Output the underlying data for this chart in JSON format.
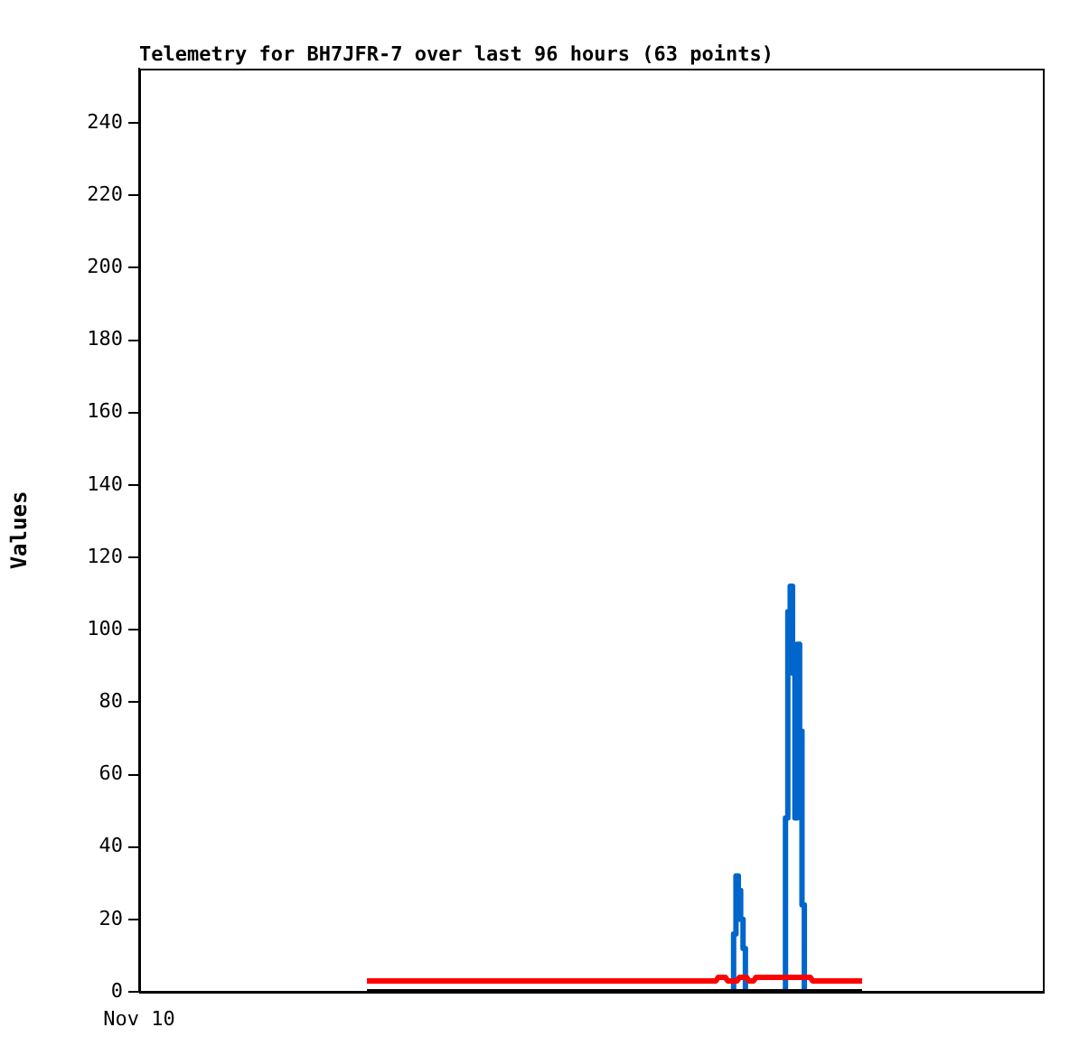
{
  "chart_data": {
    "type": "line",
    "title": "Telemetry for BH7JFR-7 over last 96 hours (63 points)",
    "ylabel": "Values",
    "annotations": [
      "Nov 10"
    ],
    "categories": [
      null,
      null,
      null,
      null,
      null,
      null,
      null,
      null,
      null,
      null,
      null,
      null,
      null,
      null,
      null,
      null,
      null,
      null,
      null,
      null,
      null,
      null,
      null,
      null,
      null,
      null,
      null,
      null,
      null,
      null,
      null,
      null,
      null,
      null,
      null,
      null,
      null,
      null,
      null,
      null,
      null,
      null,
      null,
      null,
      null,
      null,
      null,
      null,
      null,
      null,
      null,
      null,
      null,
      null,
      null,
      null,
      null,
      null,
      null,
      null,
      null,
      null,
      null,
      null,
      null,
      null,
      null,
      null,
      null,
      null,
      null,
      null,
      null,
      null,
      null,
      null,
      null,
      null,
      null,
      null,
      null,
      null,
      null,
      null,
      null,
      null,
      null,
      null,
      null,
      null,
      null,
      null,
      null,
      null,
      null,
      null,
      null,
      null,
      null,
      null,
      null,
      null,
      null,
      null,
      null,
      null,
      null,
      null,
      null,
      null,
      null,
      null,
      null,
      null,
      null,
      null,
      null,
      null,
      null,
      null,
      null,
      null,
      null,
      null,
      null,
      null,
      null,
      null,
      null,
      null,
      null,
      null,
      null,
      null,
      null,
      null,
      null,
      null,
      null,
      null,
      null,
      null,
      null,
      null,
      null,
      null,
      null,
      null,
      null,
      null,
      null,
      null,
      null,
      null,
      null,
      null,
      null,
      null,
      null,
      null,
      null,
      null,
      null,
      null,
      null,
      null,
      null,
      null,
      null,
      null,
      null,
      null,
      null,
      null,
      null,
      null,
      null,
      null,
      null,
      null,
      null,
      null,
      null,
      null,
      null,
      null,
      null,
      null,
      null,
      null,
      null,
      null,
      null,
      null,
      null,
      null,
      null,
      null,
      null,
      null,
      null,
      null,
      null,
      null,
      null,
      null,
      null,
      null,
      null,
      null,
      null
    ],
    "ylim": [
      0,
      255
    ],
    "yticks": [
      0,
      20,
      40,
      60,
      80,
      100,
      120,
      140,
      160,
      180,
      200,
      220,
      240
    ],
    "grid": false,
    "legend": false,
    "marker": "none",
    "line_style": "solid",
    "series": [
      {
        "color": "#000000",
        "values": [
          0,
          0,
          0,
          0,
          0,
          0,
          0,
          0,
          0,
          0,
          0,
          0,
          0,
          0,
          0,
          0,
          0,
          0,
          0,
          0,
          0,
          0,
          0,
          0,
          0,
          0,
          0,
          0,
          0,
          0,
          0,
          0,
          0,
          0,
          0,
          0,
          0,
          0,
          0,
          0,
          0,
          0,
          0,
          0,
          0,
          0,
          0,
          0,
          0,
          0,
          0,
          0,
          0,
          0,
          0,
          0,
          0,
          0,
          0,
          0,
          0,
          0,
          0,
          0,
          0,
          0,
          0,
          0,
          0,
          0,
          0,
          0,
          0,
          0,
          0,
          0,
          0,
          0,
          0,
          0,
          0,
          0,
          0,
          0,
          0,
          0,
          0,
          0,
          0,
          0,
          0,
          0,
          0,
          0,
          0,
          0,
          0,
          0,
          0,
          0,
          0,
          0,
          0,
          0,
          0,
          0,
          0,
          0,
          0,
          0,
          0,
          0,
          0,
          0,
          0,
          0,
          0,
          0,
          0,
          0,
          0,
          0,
          0,
          0,
          0,
          0,
          0,
          0,
          0,
          0,
          0,
          0,
          0,
          0,
          0,
          0,
          0,
          0,
          0,
          0,
          0,
          0,
          0,
          0,
          0,
          0,
          0,
          0,
          0,
          0,
          0,
          0,
          0,
          0,
          0,
          0,
          0,
          0,
          0,
          0,
          0,
          0,
          0,
          0,
          0,
          0,
          0,
          0,
          0,
          0,
          0,
          0,
          0,
          0,
          0,
          0,
          0,
          0,
          0,
          0,
          0,
          0,
          0,
          0,
          0,
          0,
          0,
          0,
          0,
          0,
          0,
          0,
          0,
          0,
          0,
          0,
          0,
          0,
          0,
          0,
          0,
          0,
          0,
          0,
          0,
          0,
          0,
          0,
          0,
          0,
          0
        ]
      },
      {
        "color": "#ff0000",
        "values": [
          3,
          3,
          3,
          3,
          3,
          3,
          3,
          3,
          3,
          3,
          3,
          3,
          3,
          3,
          3,
          3,
          3,
          3,
          3,
          3,
          3,
          3,
          3,
          3,
          3,
          3,
          3,
          3,
          3,
          3,
          3,
          3,
          3,
          3,
          3,
          3,
          3,
          3,
          3,
          3,
          3,
          3,
          3,
          3,
          3,
          3,
          3,
          3,
          3,
          3,
          3,
          3,
          3,
          3,
          3,
          3,
          3,
          3,
          3,
          3,
          3,
          3,
          3,
          3,
          3,
          3,
          3,
          3,
          3,
          3,
          3,
          3,
          3,
          3,
          3,
          3,
          3,
          3,
          3,
          3,
          3,
          3,
          3,
          3,
          3,
          3,
          3,
          3,
          3,
          3,
          3,
          3,
          3,
          3,
          3,
          3,
          3,
          3,
          3,
          3,
          3,
          3,
          3,
          3,
          3,
          3,
          3,
          3,
          3,
          3,
          3,
          3,
          3,
          3,
          3,
          3,
          3,
          3,
          3,
          3,
          3,
          3,
          3,
          3,
          3,
          3,
          3,
          3,
          3,
          3,
          3,
          3,
          3,
          3,
          3,
          3,
          3,
          3,
          3,
          3,
          3,
          3,
          3,
          3,
          3,
          3,
          3,
          3,
          3,
          4,
          4,
          4,
          4,
          3,
          3,
          3,
          3,
          3,
          4,
          4,
          4,
          4,
          3,
          3,
          3,
          4,
          4,
          4,
          4,
          4,
          4,
          4,
          4,
          4,
          4,
          4,
          4,
          4,
          4,
          4,
          4,
          4,
          4,
          4,
          4,
          4,
          4,
          4,
          4,
          3,
          3,
          3,
          3,
          3,
          3,
          3,
          3,
          3,
          3,
          3,
          3,
          3,
          3,
          3,
          3,
          3,
          3,
          3,
          3,
          3,
          3
        ]
      },
      {
        "type": "step",
        "color": "#0066cc",
        "values": [
          null,
          null,
          null,
          null,
          null,
          null,
          null,
          null,
          null,
          null,
          null,
          null,
          null,
          null,
          null,
          null,
          null,
          null,
          null,
          null,
          null,
          null,
          null,
          null,
          null,
          null,
          null,
          null,
          null,
          null,
          null,
          null,
          null,
          null,
          null,
          null,
          null,
          null,
          null,
          null,
          null,
          null,
          null,
          null,
          null,
          null,
          null,
          null,
          null,
          null,
          null,
          null,
          null,
          null,
          null,
          null,
          null,
          null,
          null,
          null,
          null,
          null,
          null,
          null,
          null,
          null,
          null,
          null,
          null,
          null,
          null,
          null,
          null,
          null,
          null,
          null,
          null,
          null,
          null,
          null,
          null,
          null,
          null,
          null,
          null,
          null,
          null,
          null,
          null,
          null,
          null,
          null,
          null,
          null,
          null,
          null,
          null,
          null,
          null,
          null,
          null,
          null,
          null,
          null,
          null,
          null,
          null,
          null,
          null,
          null,
          null,
          null,
          null,
          null,
          null,
          null,
          null,
          null,
          null,
          null,
          null,
          null,
          null,
          null,
          null,
          null,
          null,
          null,
          null,
          null,
          null,
          null,
          null,
          null,
          null,
          null,
          null,
          null,
          null,
          null,
          null,
          null,
          null,
          null,
          null,
          null,
          null,
          null,
          null,
          null,
          null,
          null,
          null,
          null,
          null,
          0,
          16,
          32,
          28,
          20,
          12,
          0,
          null,
          null,
          null,
          null,
          null,
          null,
          null,
          null,
          null,
          null,
          null,
          null,
          null,
          null,
          null,
          0,
          48,
          105,
          112,
          88,
          48,
          96,
          72,
          24,
          0,
          null,
          null,
          null,
          null,
          null,
          null,
          null,
          null,
          null,
          null,
          null,
          null,
          null,
          null,
          null,
          null,
          null,
          null,
          null,
          null,
          null,
          null,
          null,
          null
        ]
      }
    ]
  }
}
